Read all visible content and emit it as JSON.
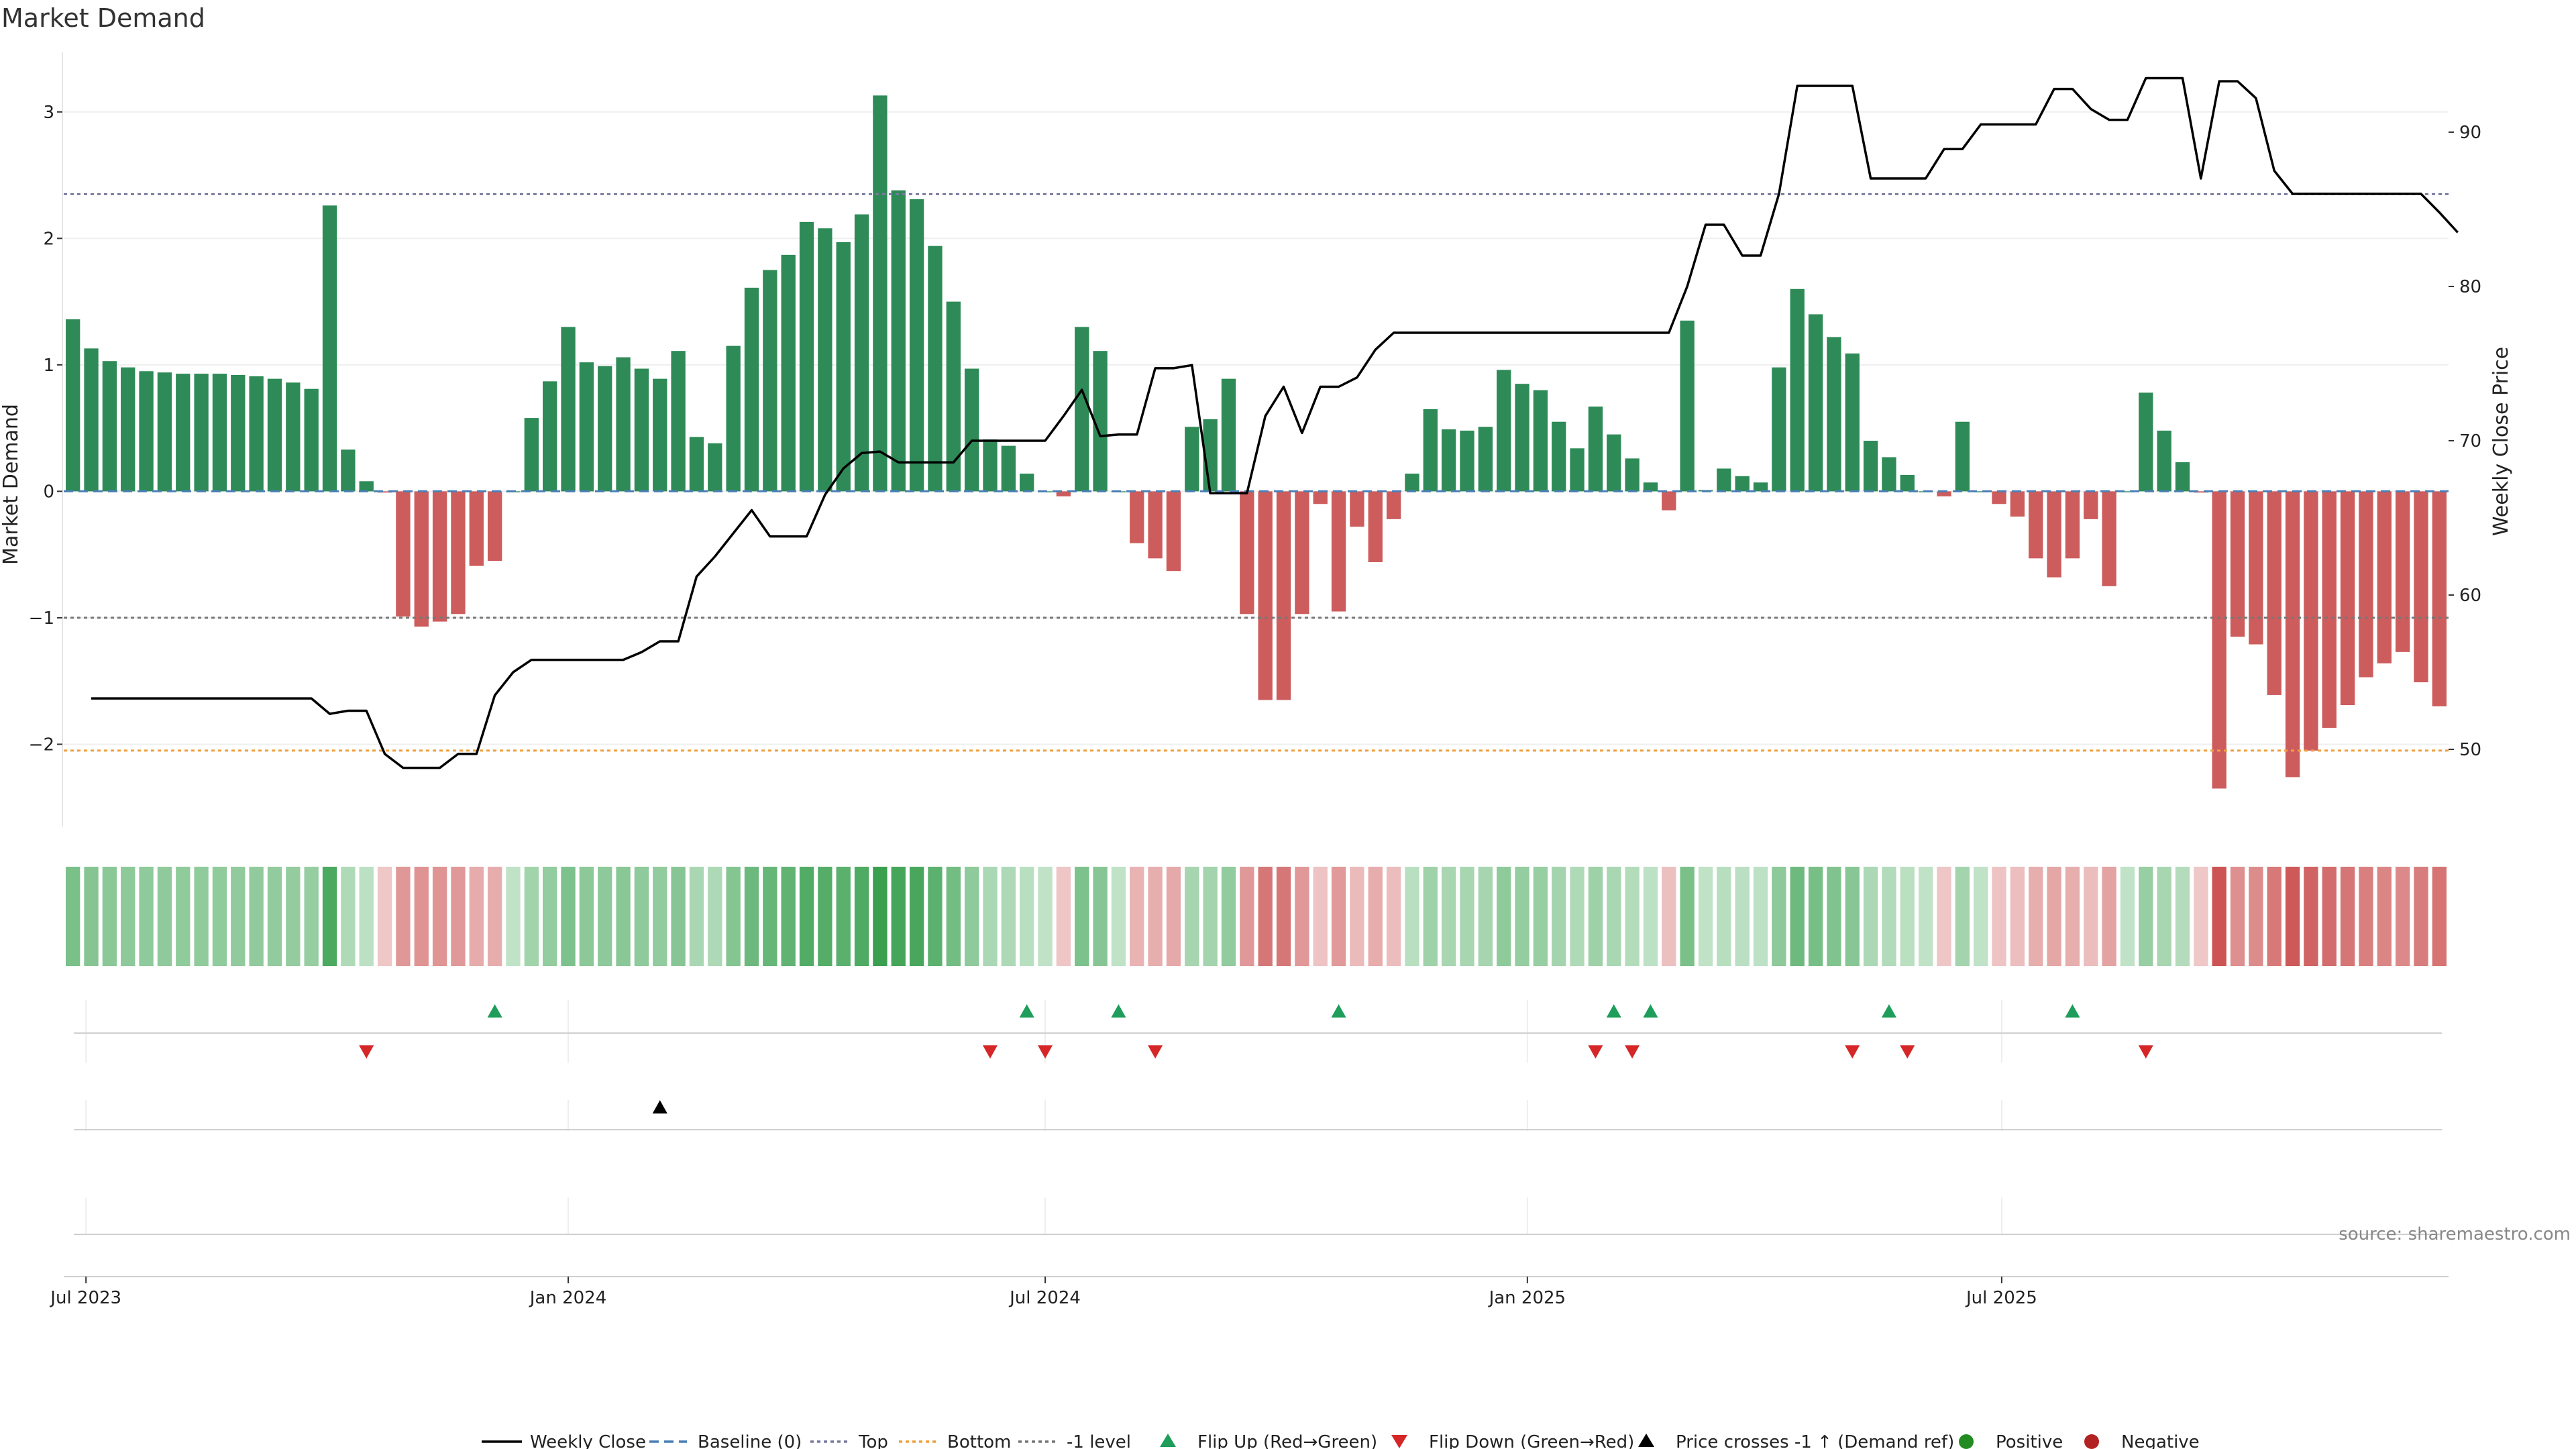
{
  "chart_data": {
    "type": "bar",
    "title": "Market Demand",
    "ylabel": "Market Demand",
    "y2label": "Weekly Close Price",
    "ylim": [
      -2.65,
      3.45
    ],
    "y2lim": [
      45,
      95
    ],
    "yticks": [
      -2,
      -1,
      0,
      1,
      2,
      3
    ],
    "y2ticks": [
      50,
      60,
      70,
      80,
      90
    ],
    "x_start": "2023-06-26",
    "x_ticks": [
      {
        "date": "2023-07-01",
        "label": "Jul 2023"
      },
      {
        "date": "2024-01-01",
        "label": "Jan 2024"
      },
      {
        "date": "2024-07-01",
        "label": "Jul 2024"
      },
      {
        "date": "2025-01-01",
        "label": "Jan 2025"
      },
      {
        "date": "2025-07-01",
        "label": "Jul 2025"
      }
    ],
    "levels": {
      "top": 2.35,
      "bottom": -2.05,
      "minus_one": -1.0,
      "baseline": 0
    },
    "demand": [
      1.36,
      1.13,
      1.03,
      0.98,
      0.95,
      0.94,
      0.93,
      0.93,
      0.93,
      0.92,
      0.91,
      0.89,
      0.86,
      0.81,
      2.26,
      0.33,
      0.08,
      -0.01,
      -0.99,
      -1.07,
      -1.03,
      -0.97,
      -0.59,
      -0.55,
      0.0,
      0.58,
      0.87,
      1.3,
      1.02,
      0.99,
      1.06,
      0.97,
      0.89,
      1.11,
      0.43,
      0.38,
      1.15,
      1.61,
      1.75,
      1.87,
      2.13,
      2.08,
      1.97,
      2.19,
      3.13,
      2.38,
      2.31,
      1.94,
      1.5,
      0.97,
      0.41,
      0.36,
      0.14,
      0.0,
      -0.04,
      1.3,
      1.11,
      0.0,
      -0.41,
      -0.53,
      -0.63,
      0.51,
      0.57,
      0.89,
      -0.97,
      -1.65,
      -1.65,
      -0.97,
      -0.1,
      -0.95,
      -0.28,
      -0.56,
      -0.22,
      0.14,
      0.65,
      0.49,
      0.48,
      0.51,
      0.96,
      0.85,
      0.8,
      0.55,
      0.34,
      0.67,
      0.45,
      0.26,
      0.07,
      -0.15,
      1.35,
      0.01,
      0.18,
      0.12,
      0.07,
      0.98,
      1.6,
      1.4,
      1.22,
      1.09,
      0.4,
      0.27,
      0.13,
      0.0,
      -0.04,
      0.55,
      0.0,
      -0.1,
      -0.2,
      -0.53,
      -0.68,
      -0.53,
      -0.22,
      -0.75,
      0.0,
      0.78,
      0.48,
      0.23,
      -0.01,
      -2.35,
      -1.15,
      -1.21,
      -1.61,
      -2.26,
      -2.05,
      -1.87,
      -1.69,
      -1.47,
      -1.36,
      -1.27,
      -1.51,
      -1.7
    ],
    "price": [
      null,
      53.3,
      53.3,
      53.3,
      53.3,
      53.3,
      53.3,
      53.3,
      53.3,
      53.3,
      53.3,
      53.3,
      53.3,
      53.3,
      52.3,
      52.5,
      52.5,
      49.7,
      48.8,
      48.8,
      48.8,
      49.7,
      49.7,
      53.5,
      55.0,
      55.8,
      55.8,
      55.8,
      55.8,
      55.8,
      55.8,
      56.3,
      57.0,
      57.0,
      61.2,
      62.5,
      64.0,
      65.5,
      63.8,
      63.8,
      63.8,
      66.5,
      68.2,
      69.2,
      69.3,
      68.6,
      68.6,
      68.6,
      68.6,
      70.0,
      70.0,
      70.0,
      70.0,
      70.0,
      71.6,
      73.3,
      70.3,
      70.4,
      70.4,
      74.7,
      74.7,
      74.9,
      66.6,
      66.6,
      66.6,
      71.6,
      73.5,
      70.5,
      73.5,
      73.5,
      74.1,
      75.9,
      77.0,
      77.0,
      77.0,
      77.0,
      77.0,
      77.0,
      77.0,
      77.0,
      77.0,
      77.0,
      77.0,
      77.0,
      77.0,
      77.0,
      77.0,
      77.0,
      80.0,
      84.0,
      84.0,
      82.0,
      82.0,
      86.0,
      93.0,
      93.0,
      93.0,
      93.0,
      87.0,
      87.0,
      87.0,
      87.0,
      88.9,
      88.9,
      90.5,
      90.5,
      90.5,
      90.5,
      92.8,
      92.8,
      91.5,
      90.8,
      90.8,
      93.5,
      93.5,
      93.5,
      87.0,
      93.3,
      93.3,
      92.2,
      87.5,
      86.0,
      86.0,
      86.0,
      86.0,
      86.0,
      86.0,
      86.0,
      86.0,
      84.8,
      83.5
    ],
    "flip_up": [
      23,
      52,
      57,
      69,
      84,
      86,
      99,
      109
    ],
    "flip_down": [
      16,
      50,
      53,
      59,
      83,
      85,
      97,
      100,
      113
    ],
    "price_cross": [
      32
    ],
    "source": "source: sharemaestro.com",
    "legend": [
      {
        "key": "close",
        "label": "Weekly Close"
      },
      {
        "key": "baseline",
        "label": "Baseline (0)"
      },
      {
        "key": "top",
        "label": "Top"
      },
      {
        "key": "bottom",
        "label": "Bottom"
      },
      {
        "key": "minus_one",
        "label": "-1 level"
      },
      {
        "key": "flip_up",
        "label": "Flip Up (Red→Green)"
      },
      {
        "key": "flip_down",
        "label": "Flip Down (Green→Red)"
      },
      {
        "key": "price_cross",
        "label": "Price crosses -1 ↑ (Demand ref)"
      },
      {
        "key": "positive",
        "label": "Positive"
      },
      {
        "key": "negative",
        "label": "Negative"
      }
    ],
    "colors": {
      "positive": "#2e8b57",
      "negative": "#cd5c5c",
      "price": "#000000",
      "top": "#7a7aa0",
      "bottom": "#f0a040",
      "minus_one": "#777777",
      "baseline": "#4a7fb5",
      "flip_up": "#1e9e5a",
      "flip_down": "#d62728",
      "positive_dot": "#228b22",
      "negative_dot": "#b22222"
    }
  }
}
